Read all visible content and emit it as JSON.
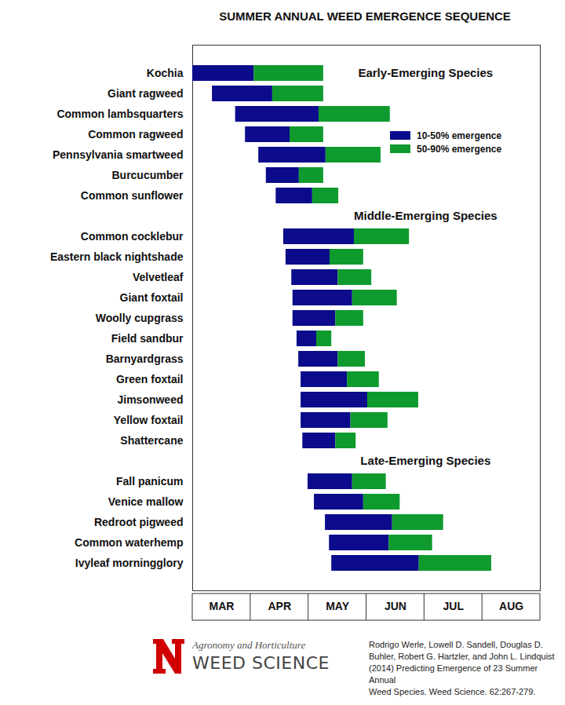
{
  "chart_data": {
    "type": "bar",
    "orientation": "horizontal",
    "title": "SUMMER ANNUAL WEED EMERGENCE SEQUENCE",
    "annotations": [
      "Early-Emerging Species",
      "Middle-Emerging Species",
      "Late-Emerging Species"
    ],
    "categories": [
      "Kochia",
      "Giant ragweed",
      "Common lambsquarters",
      "Common ragweed",
      "Pennsylvania smartweed",
      "Burcucumber",
      "Common sunflower",
      null,
      "Common cocklebur",
      "Eastern black nightshade",
      "Velvetleaf",
      "Giant foxtail",
      "Woolly cupgrass",
      "Field sandbur",
      "Barnyardgrass",
      "Green foxtail",
      "Jimsonweed",
      "Yellow foxtail",
      "Shattercane",
      null,
      "Fall panicum",
      "Venice mallow",
      "Redroot pigweed",
      "Common waterhemp",
      "Ivyleaf morningglory"
    ],
    "series": [
      {
        "name": "10-50% emergence",
        "color": "#0b0b8c",
        "values": [
          [
            3.0,
            4.06
          ],
          [
            3.34,
            4.38
          ],
          [
            3.74,
            5.18
          ],
          [
            3.91,
            4.68
          ],
          [
            4.14,
            5.3
          ],
          [
            4.27,
            4.84
          ],
          [
            4.44,
            5.07
          ],
          null,
          [
            4.57,
            5.79
          ],
          [
            4.61,
            5.37
          ],
          [
            4.71,
            5.51
          ],
          [
            4.73,
            5.76
          ],
          [
            4.73,
            5.47
          ],
          [
            4.8,
            5.14
          ],
          [
            4.83,
            5.51
          ],
          [
            4.87,
            5.67
          ],
          [
            4.87,
            6.02
          ],
          [
            4.87,
            5.73
          ],
          [
            4.9,
            5.47
          ],
          null,
          [
            4.99,
            5.76
          ],
          [
            5.1,
            5.95
          ],
          [
            5.29,
            6.45
          ],
          [
            5.36,
            6.39
          ],
          [
            5.4,
            6.91
          ]
        ]
      },
      {
        "name": "50-90% emergence",
        "color": "#0f9a2e",
        "values": [
          [
            4.06,
            5.26
          ],
          [
            4.38,
            5.26
          ],
          [
            5.18,
            6.41
          ],
          [
            4.68,
            5.26
          ],
          [
            5.3,
            6.25
          ],
          [
            4.84,
            5.26
          ],
          [
            5.07,
            5.52
          ],
          null,
          [
            5.79,
            6.74
          ],
          [
            5.37,
            5.95
          ],
          [
            5.51,
            6.09
          ],
          [
            5.76,
            6.53
          ],
          [
            5.47,
            5.95
          ],
          [
            5.14,
            5.4
          ],
          [
            5.51,
            5.98
          ],
          [
            5.67,
            6.22
          ],
          [
            6.02,
            6.9
          ],
          [
            5.73,
            6.37
          ],
          [
            5.47,
            5.82
          ],
          null,
          [
            5.76,
            6.34
          ],
          [
            5.95,
            6.58
          ],
          [
            6.45,
            7.33
          ],
          [
            6.39,
            7.14
          ],
          [
            6.91,
            8.16
          ]
        ]
      }
    ],
    "xlim": [
      3,
      9
    ],
    "xticks": [
      {
        "value": 3.5,
        "label": "MAR"
      },
      {
        "value": 4.5,
        "label": "APR"
      },
      {
        "value": 5.5,
        "label": "MAY"
      },
      {
        "value": 6.5,
        "label": "JUN"
      },
      {
        "value": 7.5,
        "label": "JUL"
      },
      {
        "value": 8.5,
        "label": "AUG"
      }
    ],
    "grid": false,
    "legend": "right",
    "logo_text": [
      "Agronomy and Horticulture",
      "WEED SCIENCE"
    ],
    "source": [
      "Rodrigo Werle, Lowell D. Sandell, Douglas D.",
      "Buhler, Robert G. Hartzler, and John L. Lindquist",
      "(2014) Predicting Emergence of 23 Summer Annual",
      "Weed Species. Weed Science. 62:267-279."
    ]
  }
}
